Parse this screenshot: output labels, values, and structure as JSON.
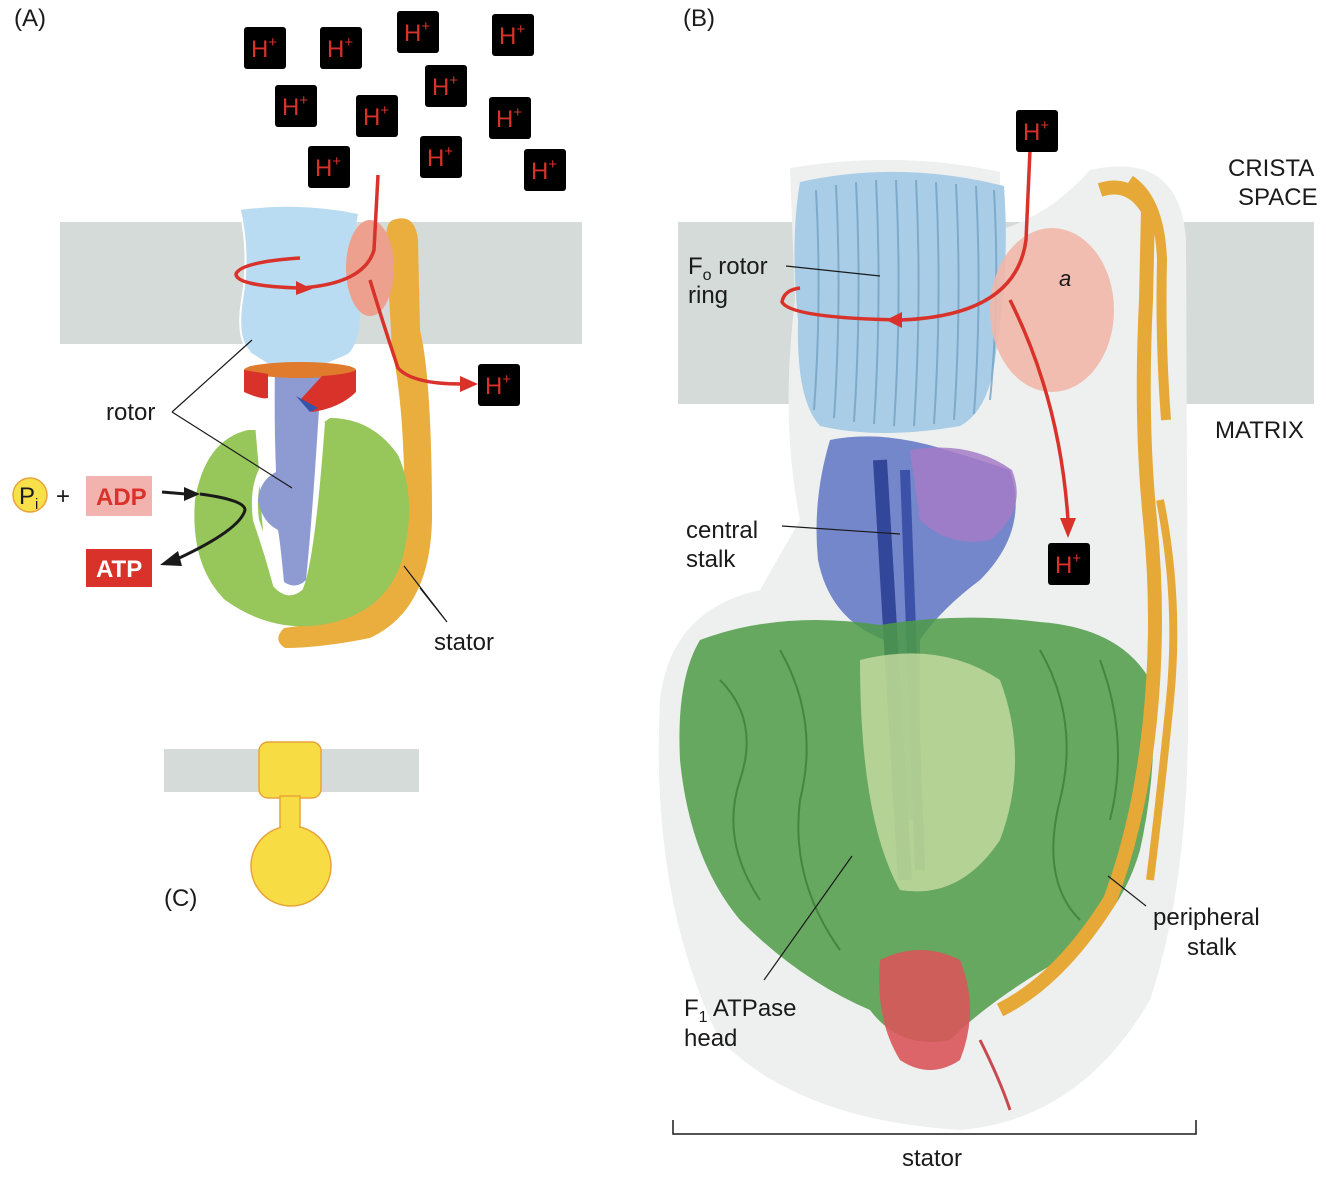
{
  "panels": {
    "a": "(A)",
    "b": "(B)",
    "c": "(C)"
  },
  "ion": {
    "symbol": "H",
    "charge": "+"
  },
  "panel_a": {
    "rotor": "rotor",
    "stator": "stator",
    "pi_main": "P",
    "pi_sub": "i",
    "plus": "+",
    "adp": "ADP",
    "atp": "ATP"
  },
  "panel_b": {
    "crista_1": "CRISTA",
    "crista_2": "SPACE",
    "matrix": "MATRIX",
    "fo_1_main": "F",
    "fo_1_sub": "o",
    "fo_1_rest": " rotor",
    "fo_2": "ring",
    "a_subunit": "a",
    "central_1": "central",
    "central_2": "stalk",
    "peripheral_1": "peripheral",
    "peripheral_2": "stalk",
    "f1_1_main": "F",
    "f1_1_sub": "1",
    "f1_1_rest": " ATPase",
    "f1_2": "head",
    "stator": "stator"
  },
  "colors": {
    "membrane": "#d5dbd8",
    "proton_red": "#d8322a",
    "ion_fill": "#f7e04a",
    "rotor_blue": "#b9dcf2",
    "stalk_blue": "#8e9ad2",
    "head_green": "#97c65a",
    "stator_orange": "#eaae3f",
    "a_subunit_pink": "#eea08e"
  }
}
